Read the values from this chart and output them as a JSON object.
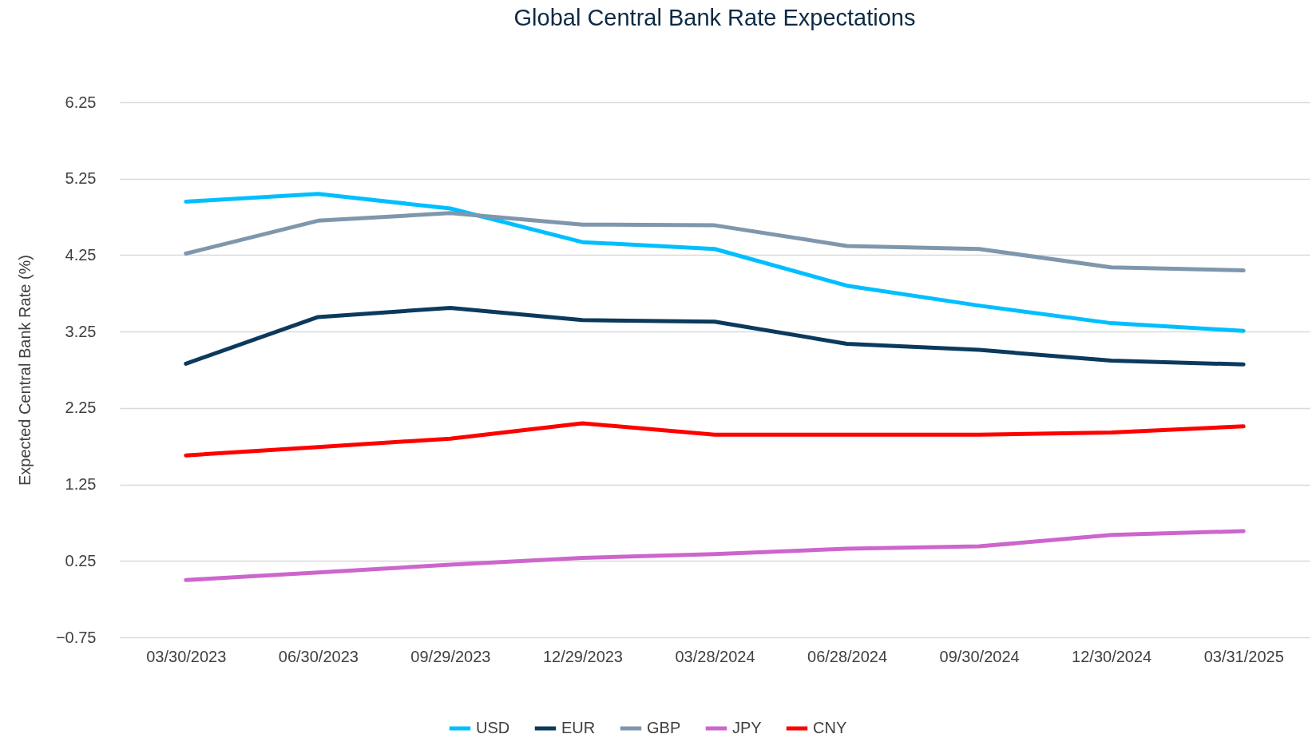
{
  "chart_data": {
    "type": "line",
    "title": "Global Central Bank Rate Expectations",
    "ylabel": "Expected Central Bank Rate (%)",
    "categories": [
      "03/30/2023",
      "06/30/2023",
      "09/29/2023",
      "12/29/2023",
      "03/28/2024",
      "06/28/2024",
      "09/30/2024",
      "12/30/2024",
      "03/31/2025"
    ],
    "series": [
      {
        "name": "USD",
        "color": "#00bfff",
        "values": [
          4.95,
          5.05,
          4.86,
          4.42,
          4.33,
          3.85,
          3.59,
          3.36,
          3.26
        ]
      },
      {
        "name": "EUR",
        "color": "#0b3a5c",
        "values": [
          2.83,
          3.44,
          3.56,
          3.4,
          3.38,
          3.09,
          3.01,
          2.87,
          2.82
        ]
      },
      {
        "name": "GBP",
        "color": "#7f97ad",
        "values": [
          4.27,
          4.7,
          4.8,
          4.65,
          4.64,
          4.37,
          4.33,
          4.09,
          4.05
        ]
      },
      {
        "name": "JPY",
        "color": "#cc66cc",
        "values": [
          0.0,
          0.1,
          0.2,
          0.29,
          0.34,
          0.41,
          0.44,
          0.59,
          0.64
        ]
      },
      {
        "name": "CNY",
        "color": "#ff0000",
        "values": [
          1.63,
          1.74,
          1.85,
          2.05,
          1.9,
          1.9,
          1.9,
          1.93,
          2.01
        ]
      }
    ],
    "ylim": [
      -0.75,
      6.25
    ],
    "yticks": [
      -0.75,
      0.25,
      1.25,
      2.25,
      3.25,
      4.25,
      5.25,
      6.25
    ],
    "grid": "y",
    "legend": "bottom",
    "marker": "none",
    "line_style": "solid"
  }
}
